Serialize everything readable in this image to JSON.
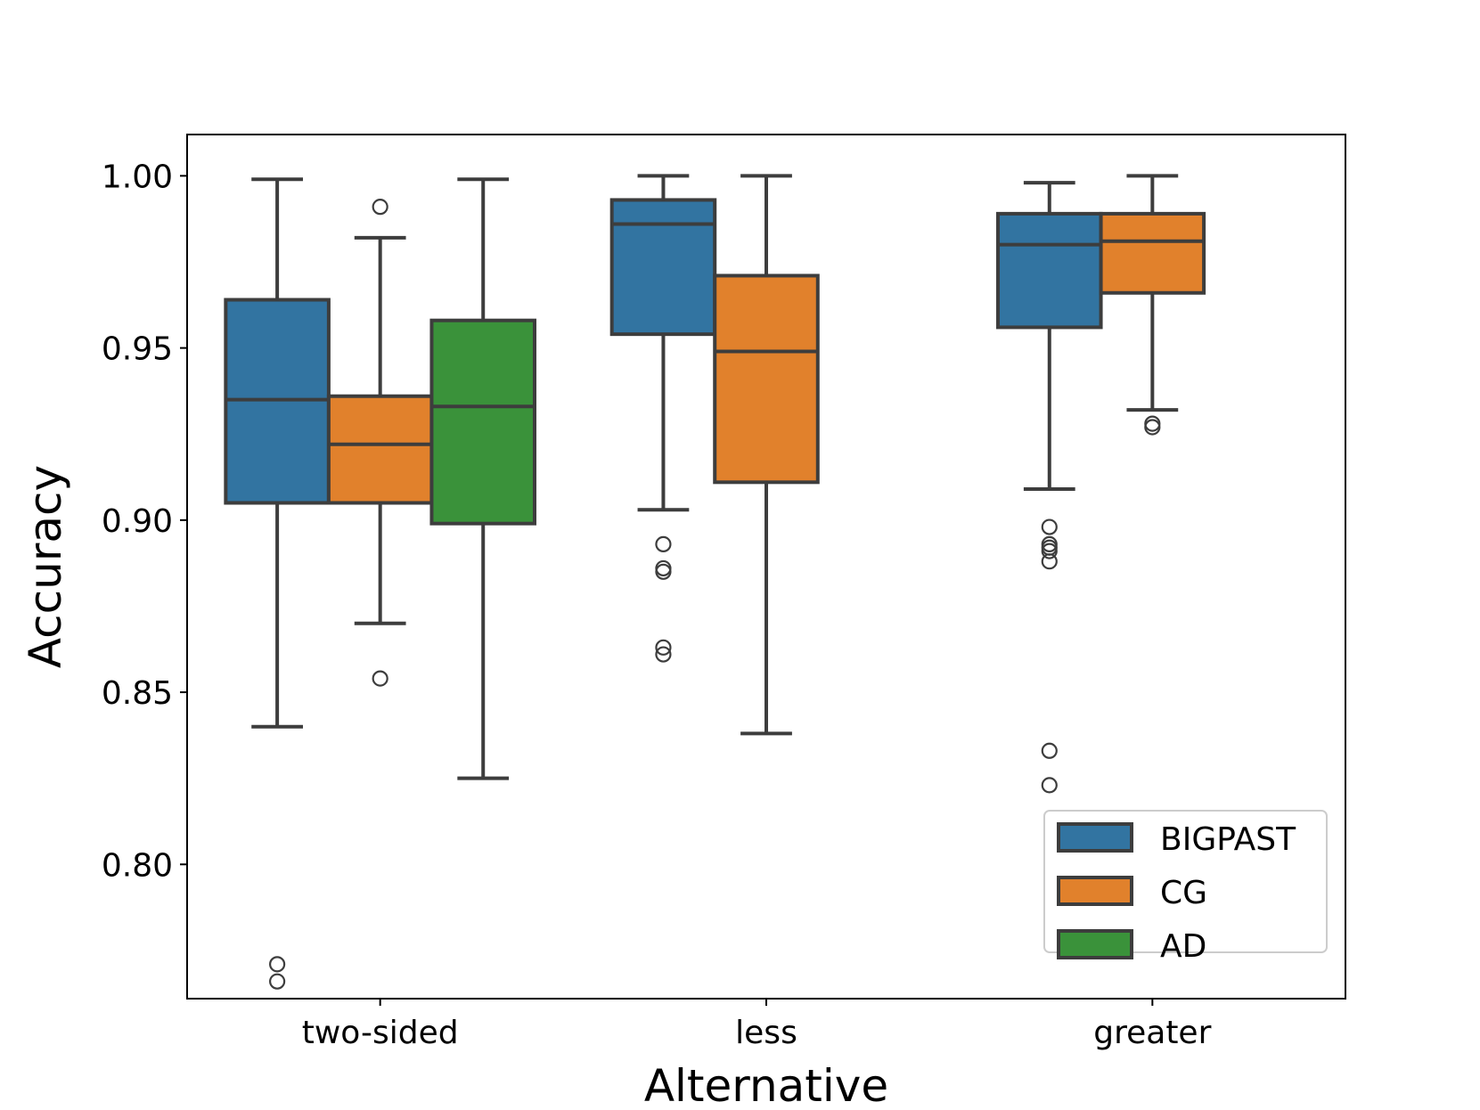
{
  "chart_data": {
    "type": "boxplot",
    "title": "",
    "xlabel": "Alternative",
    "ylabel": "Accuracy",
    "categories": [
      "two-sided",
      "less",
      "greater"
    ],
    "ylim": [
      0.761,
      1.012
    ],
    "yticks": [
      {
        "value": 0.8,
        "label": "0.80"
      },
      {
        "value": 0.85,
        "label": "0.85"
      },
      {
        "value": 0.9,
        "label": "0.90"
      },
      {
        "value": 0.95,
        "label": "0.95"
      },
      {
        "value": 1.0,
        "label": "1.00"
      }
    ],
    "legend": {
      "position": "lower right"
    },
    "series": [
      {
        "name": "BIGPAST",
        "color": "#3274a1",
        "boxes": [
          {
            "category": "two-sided",
            "whislo": 0.84,
            "q1": 0.905,
            "med": 0.935,
            "q3": 0.964,
            "whishi": 0.999,
            "fliers": [
              0.771,
              0.766
            ]
          },
          {
            "category": "less",
            "whislo": 0.903,
            "q1": 0.954,
            "med": 0.986,
            "q3": 0.993,
            "whishi": 1.0,
            "fliers": [
              0.893,
              0.886,
              0.885,
              0.863,
              0.861
            ]
          },
          {
            "category": "greater",
            "whislo": 0.909,
            "q1": 0.956,
            "med": 0.98,
            "q3": 0.989,
            "whishi": 0.998,
            "fliers": [
              0.898,
              0.893,
              0.892,
              0.891,
              0.888,
              0.833,
              0.823
            ]
          }
        ]
      },
      {
        "name": "CG",
        "color": "#e1812c",
        "boxes": [
          {
            "category": "two-sided",
            "whislo": 0.87,
            "q1": 0.905,
            "med": 0.922,
            "q3": 0.936,
            "whishi": 0.982,
            "fliers": [
              0.991,
              0.854
            ]
          },
          {
            "category": "less",
            "whislo": 0.838,
            "q1": 0.911,
            "med": 0.949,
            "q3": 0.971,
            "whishi": 1.0,
            "fliers": []
          },
          {
            "category": "greater",
            "whislo": 0.932,
            "q1": 0.966,
            "med": 0.981,
            "q3": 0.989,
            "whishi": 1.0,
            "fliers": [
              0.928,
              0.927
            ]
          }
        ]
      },
      {
        "name": "AD",
        "color": "#3a923a",
        "boxes": [
          {
            "category": "two-sided",
            "whislo": 0.825,
            "q1": 0.899,
            "med": 0.933,
            "q3": 0.958,
            "whishi": 0.999,
            "fliers": []
          }
        ]
      }
    ]
  }
}
